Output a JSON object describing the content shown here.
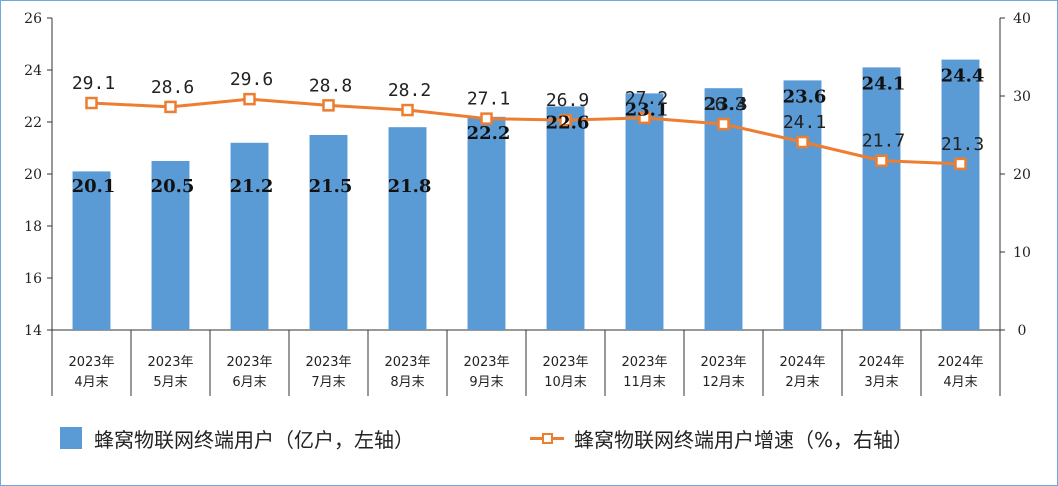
{
  "chart_data": {
    "type": "bar+line",
    "categories": [
      "2023年\n4月末",
      "2023年\n5月末",
      "2023年\n6月末",
      "2023年\n7月末",
      "2023年\n8月末",
      "2023年\n9月末",
      "2023年\n10月末",
      "2023年\n11月末",
      "2023年\n12月末",
      "2024年\n2月末",
      "2024年\n3月末",
      "2024年\n4月末"
    ],
    "series": [
      {
        "name": "蜂窝物联网终端用户（亿户，左轴）",
        "type": "bar",
        "axis": "left",
        "color": "#5b9bd5",
        "values": [
          20.1,
          20.5,
          21.2,
          21.5,
          21.8,
          22.2,
          22.6,
          23.1,
          23.3,
          23.6,
          24.1,
          24.4
        ],
        "labels": [
          "20.1",
          "20.5",
          "21.2",
          "21.5",
          "21.8",
          "22.2",
          "22.6",
          "23.1",
          "23.3",
          "23.6",
          "24.1",
          "24.4"
        ]
      },
      {
        "name": "蜂窝物联网终端用户增速（%，右轴）",
        "type": "line",
        "axis": "right",
        "color": "#ed7d31",
        "values": [
          29.1,
          28.6,
          29.6,
          28.8,
          28.2,
          27.1,
          26.9,
          27.2,
          26.4,
          24.1,
          21.7,
          21.3
        ],
        "labels": [
          "29.1",
          "28.6",
          "29.6",
          "28.8",
          "28.2",
          "27.1",
          "26.9",
          "27.2",
          "26.4",
          "24.1",
          "21.7",
          "21.3"
        ]
      }
    ],
    "y_left": {
      "ylim": [
        14,
        26
      ],
      "ticks": [
        "14",
        "16",
        "18",
        "20",
        "22",
        "24",
        "26"
      ]
    },
    "y_right": {
      "ylim": [
        0,
        40
      ],
      "ticks": [
        "0",
        "10",
        "20",
        "30",
        "40"
      ]
    },
    "grid": false,
    "legend_position": "bottom"
  }
}
